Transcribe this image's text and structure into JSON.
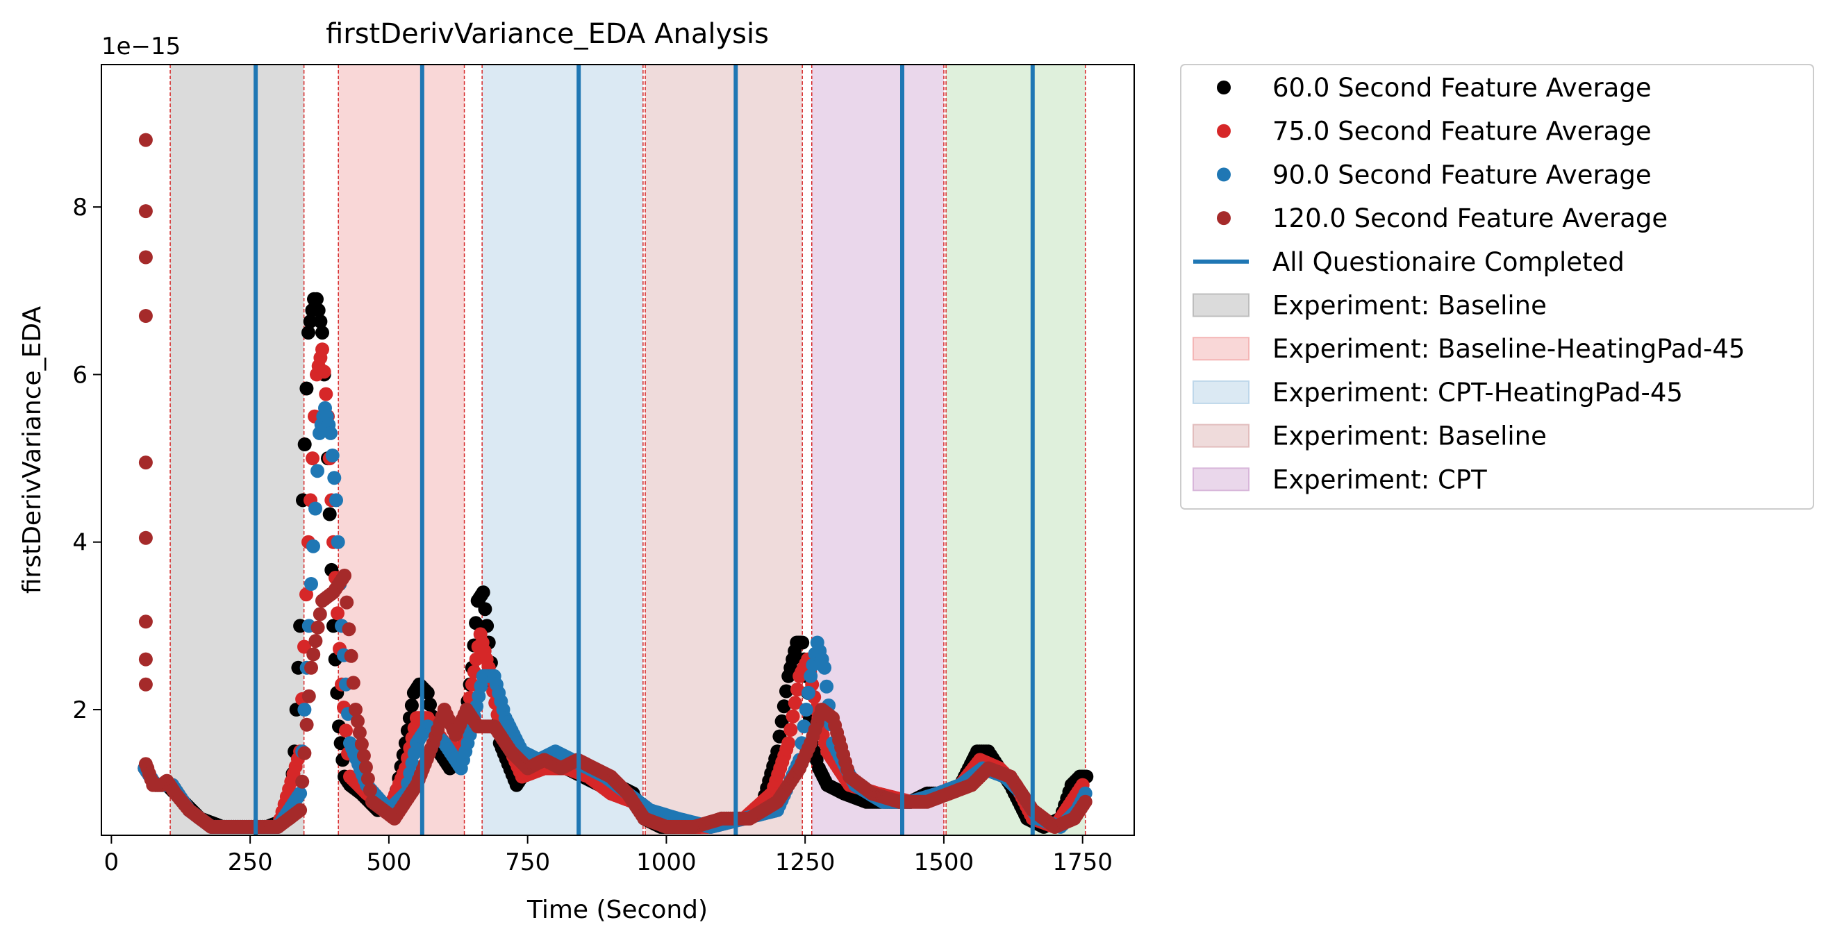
{
  "chart_data": {
    "type": "scatter",
    "title": "firstDerivVariance_EDA Analysis",
    "xlabel": "Time (Second)",
    "ylabel": "firstDerivVariance_EDA",
    "y_offset_label": "1e−15",
    "xlim": [
      -18,
      1843
    ],
    "ylim": [
      0.5,
      9.7
    ],
    "x_ticks": [
      0,
      250,
      500,
      750,
      1000,
      1250,
      1500,
      1750
    ],
    "y_ticks": [
      2,
      4,
      6,
      8
    ],
    "grid": false,
    "legend_placement": "outside-right",
    "experiment_spans": [
      {
        "name": "Experiment: Baseline",
        "start": 106,
        "end": 347,
        "color": "#bdbdbd"
      },
      {
        "name": "Experiment: Baseline-HeatingPad-45",
        "start": 409,
        "end": 636,
        "color": "#f4b6b6"
      },
      {
        "name": "Experiment: CPT-HeatingPad-45",
        "start": 668,
        "end": 958,
        "color": "#bed7ea"
      },
      {
        "name": "Experiment: Baseline",
        "start": 962,
        "end": 1245,
        "color": "#e2bdbd"
      },
      {
        "name": "Experiment: CPT",
        "start": 1262,
        "end": 1500,
        "color": "#d8b6da"
      },
      {
        "name": "",
        "start": 1504,
        "end": 1755,
        "color": "#c5e4c0"
      }
    ],
    "span_boundaries": [
      106,
      347,
      409,
      636,
      668,
      958,
      962,
      1245,
      1262,
      1500,
      1504,
      1755
    ],
    "questionnaire_completed": [
      260,
      560,
      842,
      1125,
      1425,
      1660
    ],
    "series": [
      {
        "name": "60.0 Second Feature Average",
        "color": "#000000",
        "x": [
          60,
          80,
          100,
          130,
          160,
          200,
          240,
          280,
          320,
          330,
          340,
          345,
          355,
          365,
          370,
          380,
          390,
          400,
          410,
          420,
          430,
          450,
          480,
          510,
          530,
          545,
          555,
          570,
          590,
          610,
          630,
          650,
          660,
          670,
          680,
          700,
          730,
          760,
          790,
          820,
          850,
          880,
          910,
          940,
          960,
          990,
          1020,
          1060,
          1100,
          1140,
          1170,
          1200,
          1220,
          1235,
          1245,
          1255,
          1262,
          1275,
          1290,
          1320,
          1360,
          1400,
          1440,
          1470,
          1500,
          1530,
          1560,
          1580,
          1600,
          1620,
          1650,
          1680,
          1710,
          1730,
          1745,
          1757
        ],
        "y": [
          1.3,
          1.1,
          1.1,
          0.9,
          0.7,
          0.6,
          0.6,
          0.6,
          0.7,
          1.5,
          3.0,
          4.5,
          6.5,
          6.9,
          6.9,
          6.5,
          5.0,
          3.0,
          1.8,
          1.2,
          1.1,
          1.0,
          0.8,
          0.9,
          1.6,
          2.2,
          2.3,
          2.2,
          1.5,
          1.3,
          1.5,
          2.5,
          3.3,
          3.4,
          2.8,
          1.6,
          1.1,
          1.4,
          1.4,
          1.3,
          1.2,
          1.1,
          1.1,
          1.0,
          0.7,
          0.6,
          0.6,
          0.6,
          0.7,
          0.7,
          0.8,
          1.5,
          2.4,
          2.8,
          2.8,
          2.2,
          1.6,
          1.3,
          1.1,
          1.0,
          0.9,
          0.9,
          0.9,
          1.0,
          1.0,
          1.1,
          1.5,
          1.5,
          1.3,
          1.1,
          0.7,
          0.6,
          0.7,
          1.1,
          1.2,
          1.2
        ]
      },
      {
        "name": "75.0 Second Feature Average",
        "color": "#d62728",
        "x": [
          60,
          80,
          110,
          140,
          180,
          220,
          260,
          300,
          340,
          355,
          370,
          380,
          390,
          400,
          415,
          430,
          460,
          500,
          530,
          550,
          570,
          600,
          630,
          650,
          665,
          680,
          700,
          740,
          780,
          820,
          860,
          900,
          940,
          970,
          1020,
          1080,
          1140,
          1190,
          1220,
          1240,
          1255,
          1270,
          1290,
          1330,
          1380,
          1440,
          1490,
          1530,
          1565,
          1600,
          1630,
          1660,
          1700,
          1730,
          1750
        ],
        "y": [
          1.3,
          1.1,
          1.1,
          0.8,
          0.6,
          0.6,
          0.6,
          0.6,
          1.5,
          4.0,
          6.0,
          6.3,
          5.5,
          4.0,
          2.3,
          1.2,
          1.0,
          0.8,
          1.3,
          1.9,
          1.9,
          1.6,
          1.5,
          2.3,
          2.9,
          2.5,
          1.8,
          1.2,
          1.3,
          1.3,
          1.2,
          1.0,
          0.9,
          0.7,
          0.6,
          0.6,
          0.7,
          1.0,
          1.6,
          2.4,
          2.6,
          2.0,
          1.5,
          1.1,
          1.0,
          0.9,
          1.0,
          1.1,
          1.4,
          1.3,
          1.1,
          0.7,
          0.6,
          0.9,
          1.1
        ]
      },
      {
        "name": "90.0 Second Feature Average",
        "color": "#1f77b4",
        "x": [
          60,
          80,
          110,
          140,
          180,
          220,
          260,
          300,
          340,
          360,
          375,
          385,
          395,
          405,
          415,
          430,
          460,
          500,
          530,
          550,
          570,
          600,
          630,
          650,
          670,
          690,
          710,
          740,
          770,
          800,
          830,
          860,
          890,
          930,
          970,
          1020,
          1080,
          1140,
          1200,
          1240,
          1260,
          1272,
          1285,
          1300,
          1340,
          1390,
          1440,
          1490,
          1530,
          1570,
          1610,
          1640,
          1670,
          1710,
          1740,
          1755
        ],
        "y": [
          1.3,
          1.1,
          1.1,
          0.8,
          0.6,
          0.6,
          0.6,
          0.6,
          1.0,
          3.5,
          5.3,
          5.6,
          5.3,
          4.5,
          3.0,
          1.6,
          1.1,
          0.8,
          1.0,
          1.6,
          1.8,
          1.6,
          1.3,
          1.8,
          2.4,
          2.4,
          1.9,
          1.5,
          1.4,
          1.5,
          1.4,
          1.3,
          1.2,
          1.0,
          0.8,
          0.7,
          0.6,
          0.7,
          0.8,
          1.4,
          2.4,
          2.8,
          2.5,
          1.6,
          1.1,
          0.9,
          0.9,
          1.0,
          1.1,
          1.3,
          1.2,
          1.0,
          0.7,
          0.6,
          0.8,
          1.0
        ]
      },
      {
        "name": "120.0 Second Feature Average",
        "color": "#a52a2a",
        "x": [
          62,
          62,
          62,
          62,
          62,
          62,
          62,
          62,
          62,
          62,
          65,
          75,
          90,
          100,
          115,
          140,
          180,
          220,
          260,
          300,
          340,
          360,
          380,
          400,
          420,
          440,
          470,
          510,
          550,
          580,
          600,
          620,
          640,
          660,
          690,
          720,
          750,
          780,
          810,
          840,
          870,
          900,
          930,
          960,
          1000,
          1050,
          1100,
          1150,
          1200,
          1240,
          1260,
          1280,
          1300,
          1330,
          1370,
          1420,
          1470,
          1510,
          1550,
          1580,
          1620,
          1660,
          1700,
          1735,
          1755
        ],
        "y": [
          8.8,
          7.95,
          7.4,
          6.7,
          4.95,
          4.05,
          3.05,
          2.6,
          2.3,
          1.35,
          1.3,
          1.1,
          1.1,
          1.15,
          1.0,
          0.8,
          0.6,
          0.6,
          0.6,
          0.6,
          0.8,
          2.5,
          3.3,
          3.4,
          3.6,
          2.0,
          0.9,
          0.7,
          1.1,
          1.6,
          2.0,
          1.7,
          2.0,
          1.8,
          1.8,
          1.5,
          1.3,
          1.4,
          1.3,
          1.4,
          1.3,
          1.2,
          1.0,
          0.7,
          0.6,
          0.6,
          0.7,
          0.7,
          0.9,
          1.3,
          1.6,
          2.0,
          1.9,
          1.2,
          1.0,
          0.9,
          0.9,
          1.0,
          1.1,
          1.3,
          1.2,
          0.8,
          0.6,
          0.7,
          0.9
        ]
      }
    ],
    "legend": {
      "entries": [
        {
          "label": "60.0 Second Feature Average",
          "kind": "marker",
          "color": "#000000"
        },
        {
          "label": "75.0 Second Feature Average",
          "kind": "marker",
          "color": "#d62728"
        },
        {
          "label": "90.0 Second Feature Average",
          "kind": "marker",
          "color": "#1f77b4"
        },
        {
          "label": "120.0 Second Feature Average",
          "kind": "marker",
          "color": "#a52a2a"
        },
        {
          "label": "All Questionaire Completed",
          "kind": "line",
          "color": "#1f77b4"
        },
        {
          "label": "Experiment: Baseline",
          "kind": "patch",
          "color": "#bdbdbd"
        },
        {
          "label": "Experiment: Baseline-HeatingPad-45",
          "kind": "patch",
          "color": "#f4b6b6"
        },
        {
          "label": "Experiment: CPT-HeatingPad-45",
          "kind": "patch",
          "color": "#bed7ea"
        },
        {
          "label": "Experiment: Baseline",
          "kind": "patch",
          "color": "#e2bdbd"
        },
        {
          "label": "Experiment: CPT",
          "kind": "patch",
          "color": "#d8b6da"
        }
      ]
    }
  }
}
